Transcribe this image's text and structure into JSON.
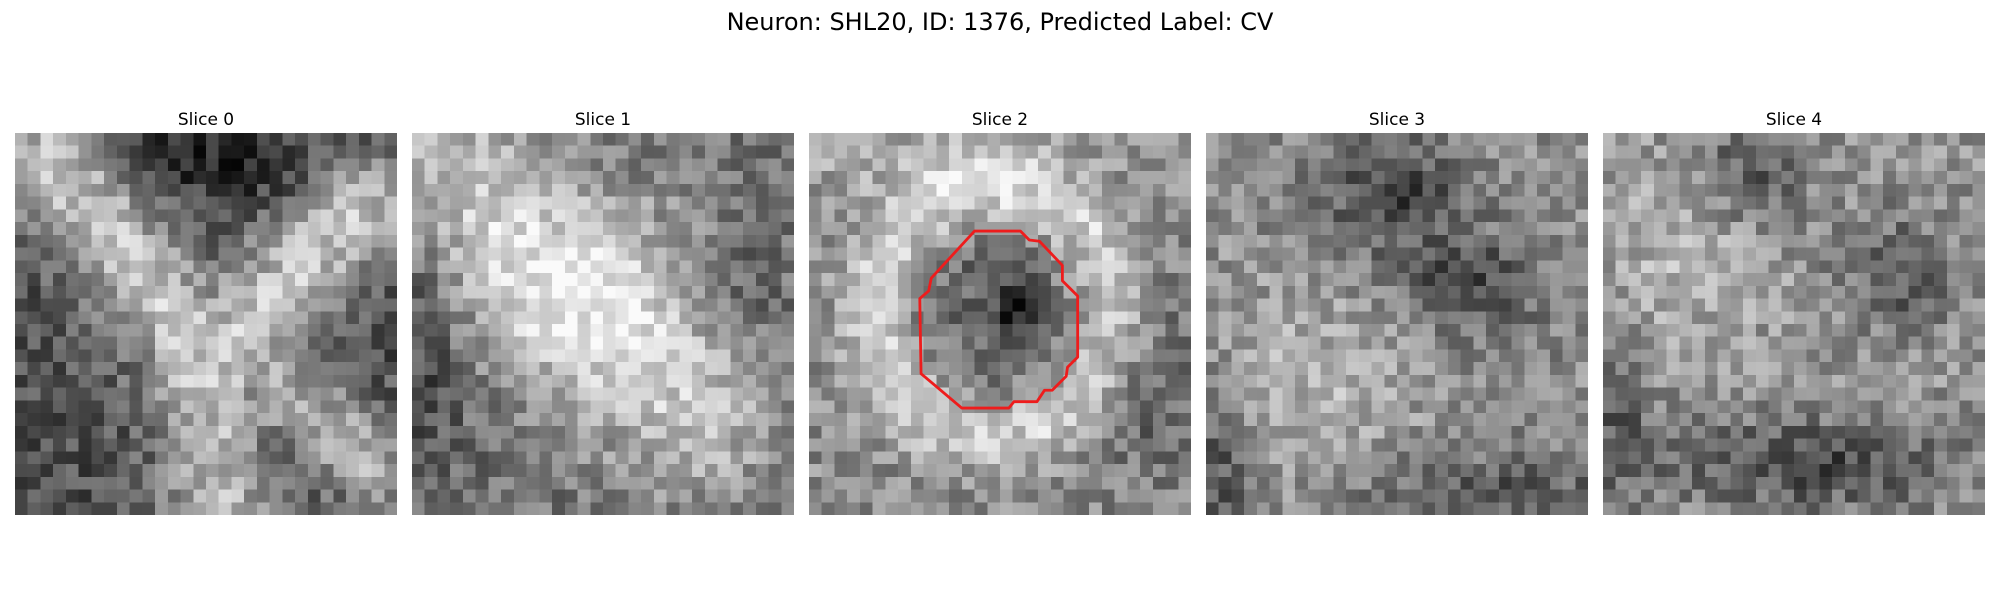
{
  "figure": {
    "title": "Neuron: SHL20, ID: 1376, Predicted Label: CV"
  },
  "panels": [
    {
      "label": "Slice 0",
      "pattern": "x-bright",
      "has_outline": false
    },
    {
      "label": "Slice 1",
      "pattern": "diffuse-bright",
      "has_outline": false
    },
    {
      "label": "Slice 2",
      "pattern": "ring-dark-center",
      "has_outline": true
    },
    {
      "label": "Slice 3",
      "pattern": "noisy-dark-spots",
      "has_outline": false
    },
    {
      "label": "Slice 4",
      "pattern": "noisy-bright",
      "has_outline": false
    }
  ],
  "colors": {
    "outline": "#ee1c1c",
    "colormap": "gray"
  }
}
